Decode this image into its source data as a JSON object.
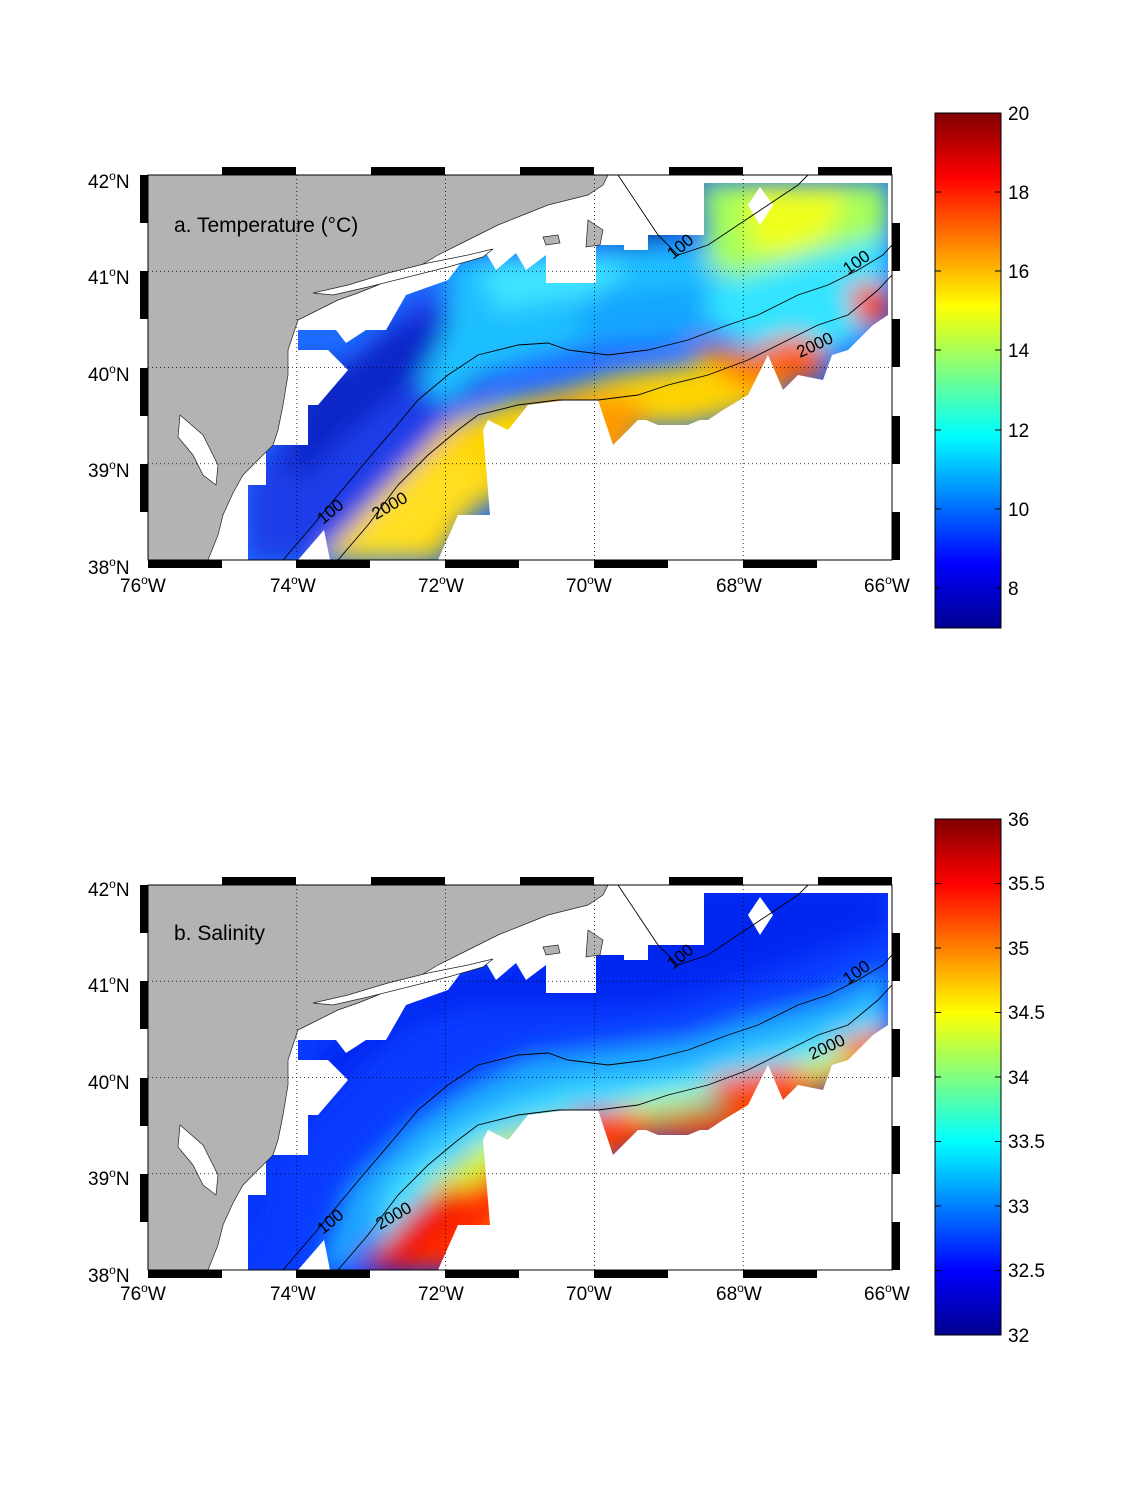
{
  "colors": {
    "land": "#b3b3b3",
    "water": "#ffffff",
    "colormap": "jet",
    "frame": "#000000"
  },
  "axes": {
    "lon_ticks": [
      "76",
      "74",
      "72",
      "70",
      "68",
      "66"
    ],
    "lat_ticks": [
      "42",
      "41",
      "40",
      "39",
      "38"
    ],
    "degree_mark": "o",
    "lon_suffix": "W",
    "lat_suffix": "N"
  },
  "panels": [
    {
      "label": "a. Temperature (°C)",
      "colorbar": {
        "min": 7,
        "max": 20,
        "ticks": [
          "20",
          "18",
          "16",
          "14",
          "12",
          "10",
          "8"
        ]
      },
      "contour_labels": [
        "100",
        "100",
        "100",
        "2000",
        "2000"
      ]
    },
    {
      "label": "b. Salinity",
      "colorbar": {
        "min": 32,
        "max": 36,
        "ticks": [
          "36",
          "35.5",
          "35",
          "34.5",
          "34",
          "33.5",
          "33",
          "32.5",
          "32"
        ]
      },
      "contour_labels": [
        "100",
        "100",
        "100",
        "2000",
        "2000"
      ]
    }
  ]
}
